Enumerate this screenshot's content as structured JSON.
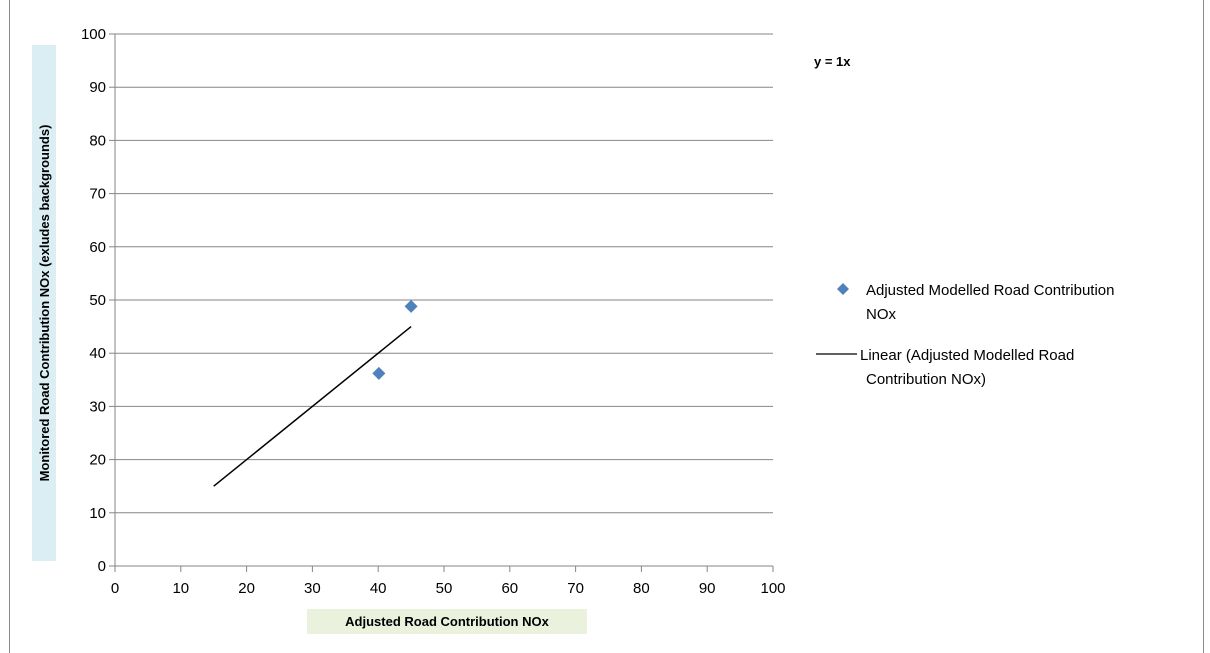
{
  "chart_data": {
    "type": "scatter",
    "xlabel": "Adjusted Road Contribution NOx",
    "ylabel": "Monitored Road Contribution NOx (exludes backgrounds)",
    "xlim": [
      0,
      100
    ],
    "ylim": [
      0,
      100
    ],
    "x_ticks": [
      "0",
      "10",
      "20",
      "30",
      "40",
      "50",
      "60",
      "70",
      "80",
      "90",
      "100"
    ],
    "y_ticks": [
      "0",
      "10",
      "20",
      "30",
      "40",
      "50",
      "60",
      "70",
      "80",
      "90",
      "100"
    ],
    "grid": "horizontal",
    "legend_position": "right",
    "equation": "y = 1x",
    "series": [
      {
        "name": "Adjusted Modelled Road Contribution NOx",
        "kind": "points",
        "marker": "diamond",
        "color": "#4f81bd",
        "points": [
          [
            40.1,
            36.2
          ],
          [
            45.0,
            48.8
          ]
        ]
      },
      {
        "name": "Linear (Adjusted Modelled Road Contribution NOx)",
        "kind": "trendline",
        "color": "#000000",
        "points": [
          [
            15,
            15
          ],
          [
            45,
            45
          ]
        ]
      }
    ]
  }
}
